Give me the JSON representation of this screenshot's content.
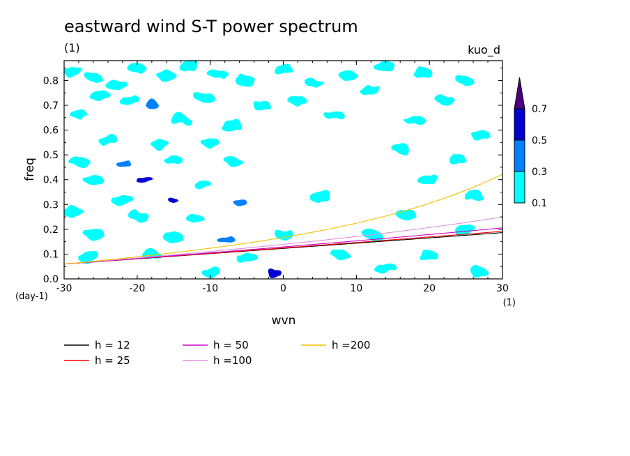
{
  "chart_data": {
    "type": "heatmap",
    "title": "eastward wind S-T power spectrum",
    "subtitle_left": "(1)",
    "subtitle_right": "kuo_d",
    "xlabel": "wvn",
    "ylabel": "freq",
    "x_unit": "(1)",
    "y_unit": "(day-1)",
    "xlim": [
      -30,
      30
    ],
    "ylim": [
      0,
      0.88
    ],
    "x_ticks": [
      -30,
      -20,
      -10,
      0,
      10,
      20,
      30
    ],
    "y_ticks": [
      0,
      0.1,
      0.2,
      0.3,
      0.4,
      0.5,
      0.6,
      0.7,
      0.8
    ],
    "x_tick_labels": [
      "-30",
      "-20",
      "-10",
      "0",
      "10",
      "20",
      "30"
    ],
    "y_tick_labels": [
      "0.0",
      "0.1",
      "0.2",
      "0.3",
      "0.4",
      "0.5",
      "0.6",
      "0.7",
      "0.8"
    ],
    "colorbar": {
      "levels": [
        0.1,
        0.3,
        0.5,
        0.7
      ],
      "labels": [
        "0.1",
        "0.3",
        "0.5",
        "0.7"
      ],
      "colors": [
        "#00ffff",
        "#0080ff",
        "#0000d0",
        "#4b0082"
      ]
    },
    "heatmap_cells": [
      {
        "x": -29,
        "y": 0.84,
        "level": 0.1
      },
      {
        "x": -26,
        "y": 0.81,
        "level": 0.1
      },
      {
        "x": -23,
        "y": 0.78,
        "level": 0.1
      },
      {
        "x": -20,
        "y": 0.85,
        "level": 0.1
      },
      {
        "x": -16,
        "y": 0.82,
        "level": 0.1
      },
      {
        "x": -13,
        "y": 0.86,
        "level": 0.1
      },
      {
        "x": -9,
        "y": 0.83,
        "level": 0.1
      },
      {
        "x": -5,
        "y": 0.8,
        "level": 0.1
      },
      {
        "x": 0,
        "y": 0.84,
        "level": 0.1
      },
      {
        "x": 4,
        "y": 0.79,
        "level": 0.1
      },
      {
        "x": 9,
        "y": 0.82,
        "level": 0.1
      },
      {
        "x": 14,
        "y": 0.86,
        "level": 0.1
      },
      {
        "x": 19,
        "y": 0.83,
        "level": 0.1
      },
      {
        "x": 25,
        "y": 0.8,
        "level": 0.1
      },
      {
        "x": -25,
        "y": 0.74,
        "level": 0.1
      },
      {
        "x": -18,
        "y": 0.7,
        "level": 0.3
      },
      {
        "x": -21,
        "y": 0.72,
        "level": 0.1
      },
      {
        "x": -11,
        "y": 0.73,
        "level": 0.1
      },
      {
        "x": -3,
        "y": 0.7,
        "level": 0.1
      },
      {
        "x": 2,
        "y": 0.72,
        "level": 0.1
      },
      {
        "x": 12,
        "y": 0.76,
        "level": 0.1
      },
      {
        "x": 22,
        "y": 0.72,
        "level": 0.1
      },
      {
        "x": -28,
        "y": 0.66,
        "level": 0.1
      },
      {
        "x": -14,
        "y": 0.64,
        "level": 0.1
      },
      {
        "x": -7,
        "y": 0.62,
        "level": 0.1
      },
      {
        "x": 7,
        "y": 0.66,
        "level": 0.1
      },
      {
        "x": 18,
        "y": 0.64,
        "level": 0.1
      },
      {
        "x": 27,
        "y": 0.58,
        "level": 0.1
      },
      {
        "x": -24,
        "y": 0.56,
        "level": 0.1
      },
      {
        "x": -17,
        "y": 0.54,
        "level": 0.1
      },
      {
        "x": -10,
        "y": 0.55,
        "level": 0.1
      },
      {
        "x": 16,
        "y": 0.52,
        "level": 0.1
      },
      {
        "x": -28,
        "y": 0.47,
        "level": 0.1
      },
      {
        "x": -22,
        "y": 0.46,
        "level": 0.3
      },
      {
        "x": -15,
        "y": 0.48,
        "level": 0.1
      },
      {
        "x": -7,
        "y": 0.47,
        "level": 0.1
      },
      {
        "x": 24,
        "y": 0.48,
        "level": 0.1
      },
      {
        "x": -19,
        "y": 0.4,
        "level": 0.5
      },
      {
        "x": -26,
        "y": 0.4,
        "level": 0.1
      },
      {
        "x": -11,
        "y": 0.38,
        "level": 0.1
      },
      {
        "x": 20,
        "y": 0.4,
        "level": 0.1
      },
      {
        "x": -15,
        "y": 0.32,
        "level": 0.5
      },
      {
        "x": -22,
        "y": 0.32,
        "level": 0.1
      },
      {
        "x": -6,
        "y": 0.31,
        "level": 0.3
      },
      {
        "x": 5,
        "y": 0.33,
        "level": 0.1
      },
      {
        "x": 26,
        "y": 0.33,
        "level": 0.1
      },
      {
        "x": -29,
        "y": 0.27,
        "level": 0.1
      },
      {
        "x": -20,
        "y": 0.25,
        "level": 0.1
      },
      {
        "x": -12,
        "y": 0.24,
        "level": 0.1
      },
      {
        "x": 17,
        "y": 0.26,
        "level": 0.1
      },
      {
        "x": -26,
        "y": 0.18,
        "level": 0.1
      },
      {
        "x": -15,
        "y": 0.17,
        "level": 0.1
      },
      {
        "x": -8,
        "y": 0.16,
        "level": 0.3
      },
      {
        "x": 0,
        "y": 0.18,
        "level": 0.1
      },
      {
        "x": 12,
        "y": 0.18,
        "level": 0.1
      },
      {
        "x": 25,
        "y": 0.2,
        "level": 0.1
      },
      {
        "x": -27,
        "y": 0.09,
        "level": 0.1
      },
      {
        "x": -18,
        "y": 0.1,
        "level": 0.1
      },
      {
        "x": -5,
        "y": 0.09,
        "level": 0.1
      },
      {
        "x": 8,
        "y": 0.1,
        "level": 0.1
      },
      {
        "x": 20,
        "y": 0.09,
        "level": 0.1
      },
      {
        "x": -1,
        "y": 0.02,
        "level": 0.5
      },
      {
        "x": -10,
        "y": 0.03,
        "level": 0.1
      },
      {
        "x": 14,
        "y": 0.04,
        "level": 0.1
      },
      {
        "x": 27,
        "y": 0.03,
        "level": 0.1
      }
    ],
    "dispersion_curves": [
      {
        "name": "h = 12",
        "h": 12,
        "color": "#000000"
      },
      {
        "name": "h = 25",
        "h": 25,
        "color": "#ff0000"
      },
      {
        "name": "h = 50",
        "h": 50,
        "color": "#d000c8"
      },
      {
        "name": "h =100",
        "h": 100,
        "color": "#e090e0"
      },
      {
        "name": "h =200",
        "h": 200,
        "color": "#f0c000"
      }
    ],
    "grid": false,
    "legend_placement": "bottom"
  }
}
